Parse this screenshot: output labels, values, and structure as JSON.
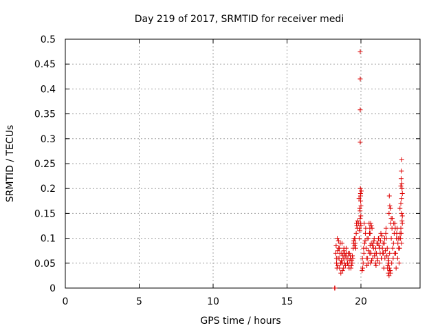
{
  "chart_data": {
    "type": "scatter",
    "title": "Day 219 of 2017, SRMTID for receiver medi",
    "xlabel": "GPS time / hours",
    "ylabel": "SRMTID / TECUs",
    "xlim": [
      0,
      24
    ],
    "ylim": [
      0,
      0.5
    ],
    "xticks": [
      0,
      5,
      10,
      15,
      20
    ],
    "xtick_labels": [
      "0",
      "5",
      "10",
      "15",
      "20"
    ],
    "yticks": [
      0,
      0.05,
      0.1,
      0.15,
      0.2,
      0.25,
      0.3,
      0.35,
      0.4,
      0.45,
      0.5
    ],
    "ytick_labels": [
      "0",
      "0.05",
      "0.1",
      "0.15",
      "0.2",
      "0.25",
      "0.3",
      "0.35",
      "0.4",
      "0.45",
      "0.5"
    ],
    "grid": true,
    "marker": "+",
    "color": "#dd0000",
    "series": [
      {
        "name": "SRMTID",
        "x": [
          18.22,
          18.23,
          18.24,
          18.3,
          18.35,
          18.4,
          18.45,
          18.5,
          18.55,
          18.6,
          18.65,
          18.7,
          18.75,
          18.8,
          18.85,
          18.9,
          18.95,
          18.32,
          18.38,
          18.42,
          18.48,
          18.52,
          18.58,
          18.62,
          18.68,
          18.72,
          18.78,
          18.82,
          18.88,
          18.92,
          18.34,
          18.44,
          18.54,
          18.64,
          18.74,
          18.84,
          18.94,
          19.0,
          19.05,
          19.1,
          19.15,
          19.2,
          19.25,
          19.3,
          19.35,
          19.4,
          19.45,
          19.5,
          19.55,
          19.02,
          19.08,
          19.12,
          19.18,
          19.22,
          19.28,
          19.32,
          19.38,
          19.42,
          19.48,
          19.52,
          19.58,
          19.6,
          19.65,
          19.7,
          19.75,
          19.62,
          19.68,
          19.72,
          19.78,
          19.85,
          19.9,
          19.95,
          20.0,
          19.87,
          19.92,
          19.97,
          20.02,
          19.88,
          19.93,
          19.98,
          19.95,
          19.95,
          19.95,
          19.95,
          19.96,
          19.97,
          19.98,
          20.0,
          19.94,
          19.99,
          20.1,
          20.15,
          20.2,
          20.25,
          20.3,
          20.35,
          20.4,
          20.45,
          20.5,
          20.55,
          20.6,
          20.65,
          20.7,
          20.75,
          20.8,
          20.85,
          20.9,
          20.95,
          20.12,
          20.22,
          20.32,
          20.42,
          20.52,
          20.62,
          20.72,
          20.82,
          20.92,
          20.08,
          20.18,
          20.28,
          20.38,
          20.48,
          20.58,
          20.68,
          20.78,
          20.88,
          20.98,
          20.6,
          20.62,
          20.66,
          20.7,
          21.0,
          21.05,
          21.1,
          21.15,
          21.2,
          21.25,
          21.3,
          21.35,
          21.4,
          21.45,
          21.5,
          21.55,
          21.6,
          21.65,
          21.7,
          21.75,
          21.02,
          21.12,
          21.22,
          21.32,
          21.42,
          21.52,
          21.62,
          21.72,
          21.08,
          21.18,
          21.28,
          21.38,
          21.48,
          21.58,
          21.68,
          21.78,
          21.8,
          21.85,
          21.9,
          21.95,
          22.0,
          21.82,
          21.88,
          21.92,
          21.98,
          21.84,
          21.94,
          21.86,
          21.9,
          21.95,
          22.0,
          22.05,
          21.92,
          22.02,
          22.05,
          22.1,
          22.15,
          22.2,
          22.25,
          22.3,
          22.35,
          22.4,
          22.45,
          22.5,
          22.55,
          22.08,
          22.18,
          22.28,
          22.38,
          22.48,
          22.58,
          22.12,
          22.22,
          22.32,
          22.42,
          22.52,
          22.6,
          22.65,
          22.7,
          22.75,
          22.8,
          22.62,
          22.68,
          22.72,
          22.78,
          22.7,
          22.72,
          22.74,
          22.76,
          22.78,
          22.8,
          22.75,
          22.77,
          22.64,
          22.7,
          22.76,
          22.8
        ],
        "y": [
          0.0,
          0.0,
          0.0,
          0.07,
          0.05,
          0.1,
          0.06,
          0.08,
          0.04,
          0.09,
          0.05,
          0.07,
          0.035,
          0.06,
          0.08,
          0.05,
          0.045,
          0.085,
          0.04,
          0.075,
          0.095,
          0.06,
          0.07,
          0.05,
          0.055,
          0.09,
          0.065,
          0.04,
          0.07,
          0.06,
          0.06,
          0.045,
          0.08,
          0.03,
          0.05,
          0.075,
          0.065,
          0.08,
          0.06,
          0.05,
          0.07,
          0.04,
          0.055,
          0.065,
          0.045,
          0.05,
          0.06,
          0.09,
          0.1,
          0.07,
          0.05,
          0.06,
          0.045,
          0.07,
          0.06,
          0.04,
          0.055,
          0.065,
          0.08,
          0.095,
          0.085,
          0.1,
          0.08,
          0.13,
          0.12,
          0.09,
          0.11,
          0.125,
          0.135,
          0.13,
          0.12,
          0.14,
          0.125,
          0.18,
          0.16,
          0.19,
          0.195,
          0.1,
          0.115,
          0.13,
          0.475,
          0.42,
          0.358,
          0.293,
          0.2,
          0.185,
          0.175,
          0.165,
          0.155,
          0.145,
          0.06,
          0.05,
          0.07,
          0.09,
          0.11,
          0.08,
          0.045,
          0.06,
          0.1,
          0.13,
          0.07,
          0.05,
          0.09,
          0.12,
          0.06,
          0.08,
          0.1,
          0.07,
          0.04,
          0.13,
          0.12,
          0.1,
          0.075,
          0.085,
          0.055,
          0.09,
          0.065,
          0.035,
          0.08,
          0.095,
          0.06,
          0.05,
          0.11,
          0.07,
          0.085,
          0.095,
          0.05,
          0.12,
          0.11,
          0.13,
          0.125,
          0.08,
          0.07,
          0.06,
          0.09,
          0.1,
          0.05,
          0.07,
          0.11,
          0.06,
          0.08,
          0.09,
          0.04,
          0.1,
          0.075,
          0.12,
          0.065,
          0.045,
          0.055,
          0.085,
          0.095,
          0.105,
          0.07,
          0.06,
          0.1,
          0.09,
          0.1,
          0.08,
          0.06,
          0.07,
          0.09,
          0.11,
          0.08,
          0.04,
          0.03,
          0.025,
          0.035,
          0.03,
          0.045,
          0.05,
          0.04,
          0.035,
          0.06,
          0.07,
          0.055,
          0.15,
          0.165,
          0.16,
          0.14,
          0.185,
          0.13,
          0.1,
          0.12,
          0.08,
          0.09,
          0.11,
          0.13,
          0.07,
          0.1,
          0.12,
          0.09,
          0.08,
          0.05,
          0.06,
          0.07,
          0.04,
          0.06,
          0.05,
          0.14,
          0.13,
          0.12,
          0.11,
          0.1,
          0.1,
          0.11,
          0.12,
          0.09,
          0.13,
          0.08,
          0.1,
          0.11,
          0.135,
          0.205,
          0.22,
          0.235,
          0.258,
          0.2,
          0.19,
          0.18,
          0.21,
          0.16,
          0.17,
          0.15,
          0.145
        ]
      }
    ]
  }
}
